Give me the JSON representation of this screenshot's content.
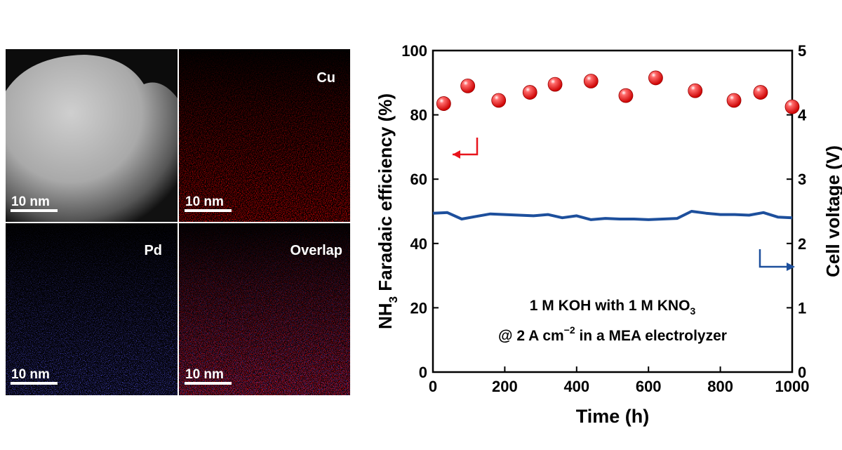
{
  "panels": [
    {
      "scale_bar": "10 nm"
    },
    {
      "label": "Cu",
      "scale_bar": "10 nm"
    },
    {
      "label": "Pd",
      "scale_bar": "10 nm"
    },
    {
      "label": "Overlap",
      "scale_bar": "10 nm"
    }
  ],
  "chart_data": {
    "type": "scatter",
    "x_label": "Time (h)",
    "y_label": {
      "main": "NH",
      "sub": "3",
      "rest": " Faradaic efficiency (%)"
    },
    "y2_label": "Cell voltage (V)",
    "annotations": [
      {
        "main": "1 M KOH with 1 M KNO",
        "sub": "3"
      },
      {
        "main": "@ 2 A cm",
        "sup": "−2",
        "rest": "  in a MEA electrolyzer"
      }
    ],
    "xlim": [
      0,
      1000
    ],
    "xticks": [
      0,
      200,
      400,
      600,
      800,
      1000
    ],
    "ylim": [
      0,
      100
    ],
    "yticks": [
      0,
      20,
      40,
      60,
      80,
      100
    ],
    "y2lim": [
      0,
      5
    ],
    "y2ticks": [
      0,
      1,
      2,
      3,
      4,
      5
    ],
    "series": [
      {
        "type": "scatter",
        "color": "#e8141c",
        "x": [
          30,
          97,
          183,
          270,
          340,
          440,
          537,
          620,
          730,
          838,
          912,
          1000
        ],
        "values": [
          83.5,
          89,
          84.5,
          87,
          89.5,
          90.5,
          86,
          91.5,
          87.5,
          84.5,
          87,
          82.5
        ]
      },
      {
        "type": "line",
        "axis": "y2",
        "color": "#1d4f9c",
        "x": [
          0,
          40,
          80,
          120,
          160,
          200,
          240,
          280,
          320,
          360,
          400,
          440,
          480,
          520,
          560,
          600,
          640,
          680,
          720,
          760,
          800,
          840,
          880,
          920,
          960,
          1000
        ],
        "values": [
          2.47,
          2.48,
          2.38,
          2.42,
          2.46,
          2.45,
          2.44,
          2.43,
          2.45,
          2.4,
          2.43,
          2.37,
          2.39,
          2.38,
          2.38,
          2.37,
          2.38,
          2.39,
          2.5,
          2.47,
          2.45,
          2.45,
          2.44,
          2.48,
          2.41,
          2.4
        ]
      }
    ]
  }
}
